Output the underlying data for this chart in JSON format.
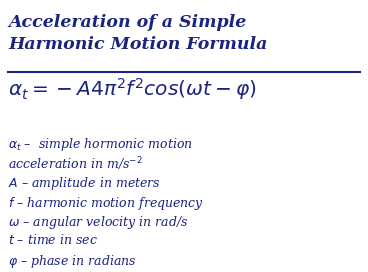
{
  "title_line1": "Acceleration of a Simple",
  "title_line2": "Harmonic Motion Formula",
  "formula": "$\\alpha_t =  -A4\\pi^2 f^2 cos(\\omega t - \\varphi)$",
  "description_lines": [
    "$\\alpha_t$ –  simple hormonic motion",
    "acceleration in m/s$^{-2}$",
    "$A$ – amplitude in meters",
    "$f$ – harmonic motion frequency",
    "$\\omega$ – angular velocity in rad/s",
    "$t$ – time in sec",
    "$\\varphi$ – phase in radians"
  ],
  "title_color": "#1a237e",
  "formula_color": "#1a237e",
  "desc_color": "#1a237e",
  "bg_color": "#ffffff",
  "underline_color": "#1a237e",
  "title_fontsize": 12.5,
  "formula_fontsize": 14.5,
  "desc_fontsize": 9.0
}
